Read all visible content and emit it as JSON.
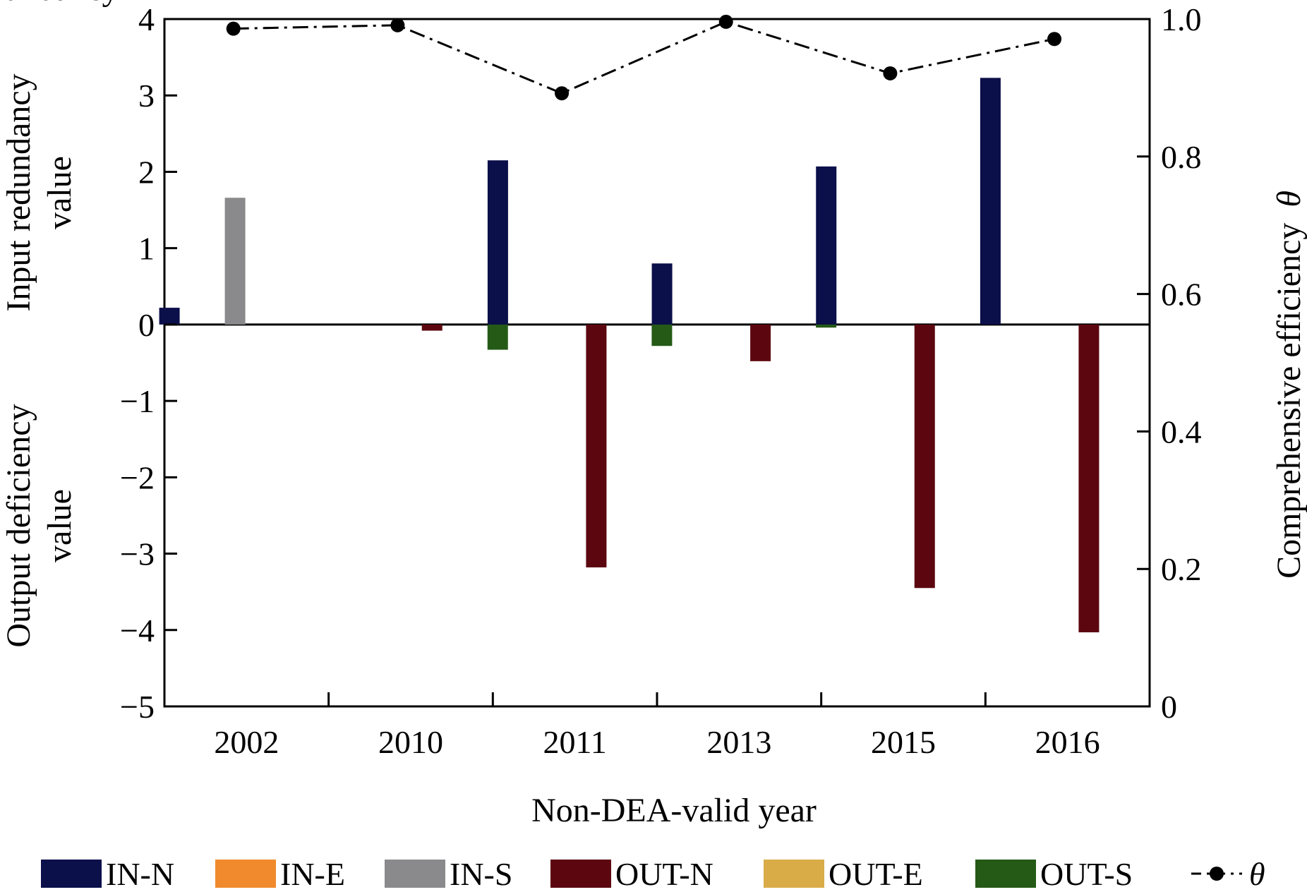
{
  "chart_data": {
    "type": "bar",
    "categories": [
      "2002",
      "2010",
      "2011",
      "2013",
      "2015",
      "2016"
    ],
    "series": [
      {
        "name": "IN-N",
        "color": "#0b0f4a",
        "values": [
          0.22,
          0,
          2.15,
          0.8,
          2.07,
          3.23
        ]
      },
      {
        "name": "IN-E",
        "color": "#f08a2c",
        "values": [
          0,
          0,
          0,
          0,
          0,
          0
        ]
      },
      {
        "name": "IN-S",
        "color": "#8a898c",
        "values": [
          1.66,
          0,
          0,
          0,
          0,
          0
        ]
      },
      {
        "name": "OUT-N",
        "color": "#5c0710",
        "values": [
          0,
          -0.08,
          -3.18,
          -0.48,
          -3.45,
          -4.03
        ]
      },
      {
        "name": "OUT-E",
        "color": "#d9ac48",
        "values": [
          0,
          0,
          0,
          0,
          0,
          0
        ]
      },
      {
        "name": "OUT-S",
        "color": "#245a16",
        "values": [
          0,
          -0.33,
          -0.28,
          -0.04,
          0,
          0
        ]
      }
    ],
    "line_series": {
      "name": "θ",
      "legend_label": "θ",
      "values": [
        0.986,
        0.991,
        0.892,
        0.996,
        0.921,
        0.971
      ]
    },
    "y_left": {
      "ylim": [
        -5,
        4
      ],
      "ticks": [
        "−5",
        "−4",
        "−3",
        "−2",
        "−1",
        "0",
        "1",
        "2",
        "3",
        "4"
      ],
      "label_top_line1": "Input redundancy",
      "label_top_line2": "value",
      "label_bottom_line1": "Output deficiency",
      "label_bottom_line2": "value"
    },
    "y_right": {
      "ylim": [
        0,
        1.0
      ],
      "ticks": [
        "0",
        "0.2",
        "0.4",
        "0.6",
        "0.8",
        "1.0"
      ],
      "tick_values": [
        0,
        0.2,
        0.4,
        0.6,
        0.8,
        1.0
      ],
      "label": "Comprehensive efficiency",
      "label_symbol": "θ"
    },
    "xlabel": "Non-DEA-valid year",
    "legend_position": "bottom"
  }
}
